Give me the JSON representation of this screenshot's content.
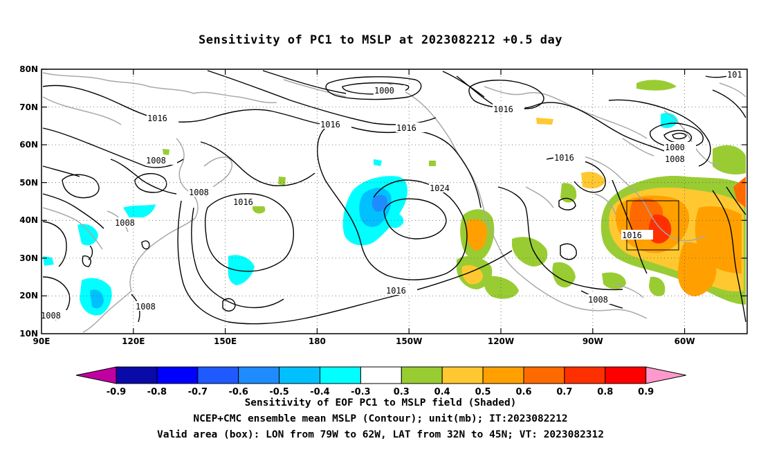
{
  "title": "Sensitivity of PC1 to MSLP at 2023082212 +0.5 day",
  "lat_labels": [
    "80N",
    "70N",
    "60N",
    "50N",
    "40N",
    "30N",
    "20N",
    "10N"
  ],
  "lon_labels": [
    "90E",
    "120E",
    "150E",
    "180",
    "150W",
    "120W",
    "90W",
    "60W"
  ],
  "contour_labels": {
    "c1": "1000",
    "c2": "1016",
    "c3": "1016",
    "c4": "1016",
    "c5": "1016",
    "c6": "1008",
    "c7": "1008",
    "c8": "1016",
    "c9": "1024",
    "c10": "1008",
    "c11": "1016",
    "c12": "1016",
    "c13": "1000",
    "c14": "1008",
    "c15": "1016",
    "c16": "1008",
    "c17": "1008",
    "c18": "1008",
    "c19": "101"
  },
  "colorbar": {
    "labels": [
      "-0.9",
      "-0.8",
      "-0.7",
      "-0.6",
      "-0.5",
      "-0.4",
      "-0.3",
      "0.3",
      "0.4",
      "0.5",
      "0.6",
      "0.7",
      "0.8",
      "0.9"
    ],
    "colors": [
      "#0a0aa8",
      "#0000ff",
      "#1e5aff",
      "#1e8cff",
      "#00c0ff",
      "#00ffff",
      "#ffffff",
      "#99cc33",
      "#ffc830",
      "#ffa000",
      "#ff6a00",
      "#ff3000",
      "#ff0000"
    ],
    "low_arrow_color": "#c000a0",
    "high_arrow_color": "#ff99cc"
  },
  "caption": {
    "line1": "Sensitivity of EOF PC1 to MSLP field (Shaded)",
    "line2": "NCEP+CMC ensemble mean MSLP (Contour); unit(mb); IT:2023082212",
    "line3": "Valid area (box): LON from 79W to 62W, LAT from 32N to 45N; VT: 2023082312"
  }
}
